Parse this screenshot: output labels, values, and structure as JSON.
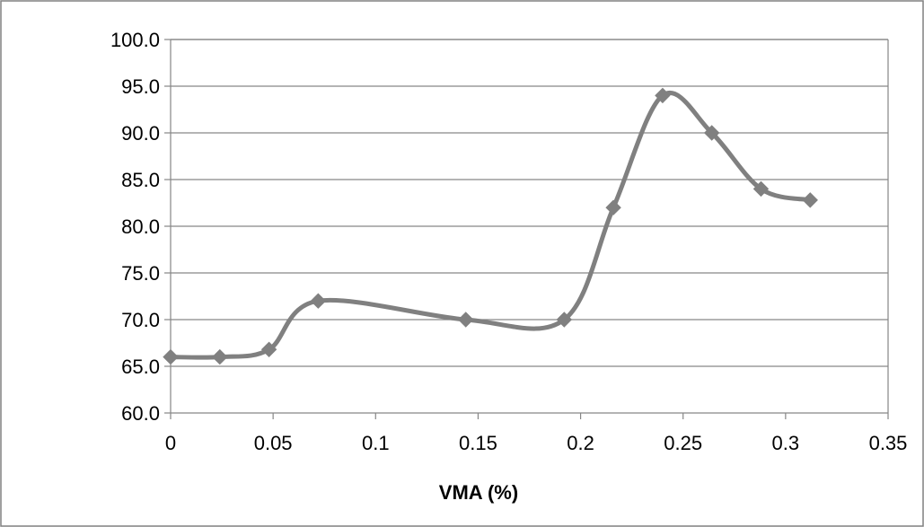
{
  "chart_data": {
    "type": "line",
    "title": "",
    "xlabel": "VMA (%)",
    "ylabel": "",
    "xlim": [
      0,
      0.35
    ],
    "ylim": [
      60,
      100
    ],
    "x_ticks": [
      "0",
      "0.05",
      "0.1",
      "0.15",
      "0.2",
      "0.25",
      "0.3",
      "0.35"
    ],
    "y_ticks": [
      "60.0",
      "65.0",
      "70.0",
      "75.0",
      "80.0",
      "85.0",
      "90.0",
      "95.0",
      "100.0"
    ],
    "grid": {
      "horizontal": true,
      "vertical": false
    },
    "smooth": true,
    "marker": "diamond",
    "series": [
      {
        "color": "#808080",
        "points": [
          {
            "x": 0.0,
            "y": 66.0
          },
          {
            "x": 0.024,
            "y": 66.0
          },
          {
            "x": 0.048,
            "y": 66.8
          },
          {
            "x": 0.072,
            "y": 72.0
          },
          {
            "x": 0.144,
            "y": 70.0
          },
          {
            "x": 0.192,
            "y": 70.0
          },
          {
            "x": 0.216,
            "y": 82.0
          },
          {
            "x": 0.24,
            "y": 94.0
          },
          {
            "x": 0.264,
            "y": 90.0
          },
          {
            "x": 0.288,
            "y": 84.0
          },
          {
            "x": 0.312,
            "y": 82.8
          }
        ]
      }
    ]
  }
}
